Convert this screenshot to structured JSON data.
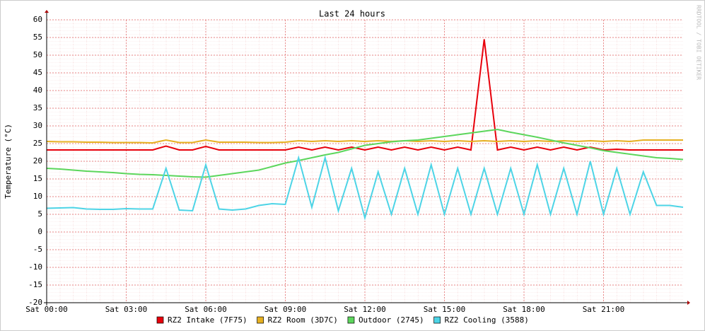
{
  "chart_data": {
    "type": "line",
    "title": "Last 24 hours",
    "y_label": "Temperature (°C)",
    "watermark": "RRDTOOL / TOBI OETIKER",
    "x": [
      0,
      0.5,
      1,
      1.5,
      2,
      2.5,
      3,
      3.5,
      4,
      4.5,
      5,
      5.5,
      6,
      6.5,
      7,
      7.5,
      8,
      8.5,
      9,
      9.5,
      10,
      10.5,
      11,
      11.5,
      12,
      12.5,
      13,
      13.5,
      14,
      14.5,
      15,
      15.5,
      16,
      16.5,
      17,
      17.5,
      18,
      18.5,
      19,
      19.5,
      20,
      20.5,
      21,
      21.5,
      22,
      22.5,
      23,
      23.5,
      24
    ],
    "xlim": [
      0,
      24
    ],
    "xticks": [
      {
        "value": 0,
        "label": "Sat 00:00"
      },
      {
        "value": 3,
        "label": "Sat 03:00"
      },
      {
        "value": 6,
        "label": "Sat 06:00"
      },
      {
        "value": 9,
        "label": "Sat 09:00"
      },
      {
        "value": 12,
        "label": "Sat 12:00"
      },
      {
        "value": 15,
        "label": "Sat 15:00"
      },
      {
        "value": 18,
        "label": "Sat 18:00"
      },
      {
        "value": 21,
        "label": "Sat 21:00"
      }
    ],
    "ylim": [
      -20,
      60
    ],
    "yticks": [
      -20,
      -15,
      -10,
      -5,
      0,
      5,
      10,
      15,
      20,
      25,
      30,
      35,
      40,
      45,
      50,
      55,
      60
    ],
    "grid": true,
    "series": [
      {
        "name": "RZ2 Intake (7F75)",
        "color": "#e8000b",
        "values": [
          23.2,
          23.2,
          23.2,
          23.2,
          23.2,
          23.2,
          23.2,
          23.2,
          23.2,
          24.3,
          23.2,
          23.2,
          24.2,
          23.2,
          23.2,
          23.2,
          23.2,
          23.2,
          23.2,
          24,
          23.2,
          24,
          23.2,
          24,
          23.2,
          24,
          23.2,
          24,
          23.2,
          24,
          23.2,
          24,
          23.2,
          54.5,
          23.2,
          24,
          23.2,
          24,
          23.2,
          24,
          23.2,
          24,
          23.2,
          23.4,
          23.2,
          23.2,
          23.2,
          23.2,
          23.2
        ]
      },
      {
        "name": "RZ2 Room (3D7C)",
        "color": "#e6b020",
        "values": [
          25.6,
          25.5,
          25.5,
          25.4,
          25.4,
          25.3,
          25.3,
          25.3,
          25.2,
          26,
          25.3,
          25.3,
          26,
          25.4,
          25.4,
          25.4,
          25.3,
          25.3,
          25.4,
          25.8,
          25.6,
          25.8,
          25.6,
          25.8,
          25.6,
          25.8,
          25.6,
          25.8,
          25.6,
          25.8,
          25.6,
          25.8,
          25.6,
          25.8,
          25.6,
          25.8,
          25.6,
          25.8,
          25.6,
          25.8,
          25.6,
          25.8,
          25.6,
          25.8,
          25.6,
          26,
          26,
          26,
          26
        ]
      },
      {
        "name": "Outdoor (2745)",
        "color": "#5cd65c",
        "values": [
          18,
          17.8,
          17.5,
          17.2,
          17,
          16.8,
          16.5,
          16.3,
          16.2,
          16,
          15.8,
          15.6,
          15.5,
          16,
          16.5,
          17,
          17.5,
          18.5,
          19.5,
          20.2,
          21,
          21.8,
          22.5,
          23.5,
          24.5,
          25,
          25.5,
          25.8,
          26,
          26.5,
          27,
          27.5,
          28,
          28.5,
          29,
          28.2,
          27.5,
          26.8,
          26,
          25.2,
          24.5,
          23.8,
          23,
          22.5,
          22,
          21.5,
          21,
          20.8,
          20.5
        ]
      },
      {
        "name": "RZ2 Cooling (3588)",
        "color": "#4dd4e6",
        "values": [
          6.7,
          6.8,
          6.9,
          6.5,
          6.4,
          6.4,
          6.6,
          6.5,
          6.5,
          18,
          6.2,
          6,
          19,
          6.5,
          6.2,
          6.5,
          7.5,
          8,
          7.8,
          21,
          7,
          21,
          6,
          18,
          4,
          17,
          5,
          18,
          5,
          19,
          5,
          18,
          5,
          18,
          5,
          18,
          5,
          19,
          5,
          18,
          5,
          20,
          5,
          18,
          5,
          17,
          7.5,
          7.5,
          7
        ]
      }
    ]
  }
}
